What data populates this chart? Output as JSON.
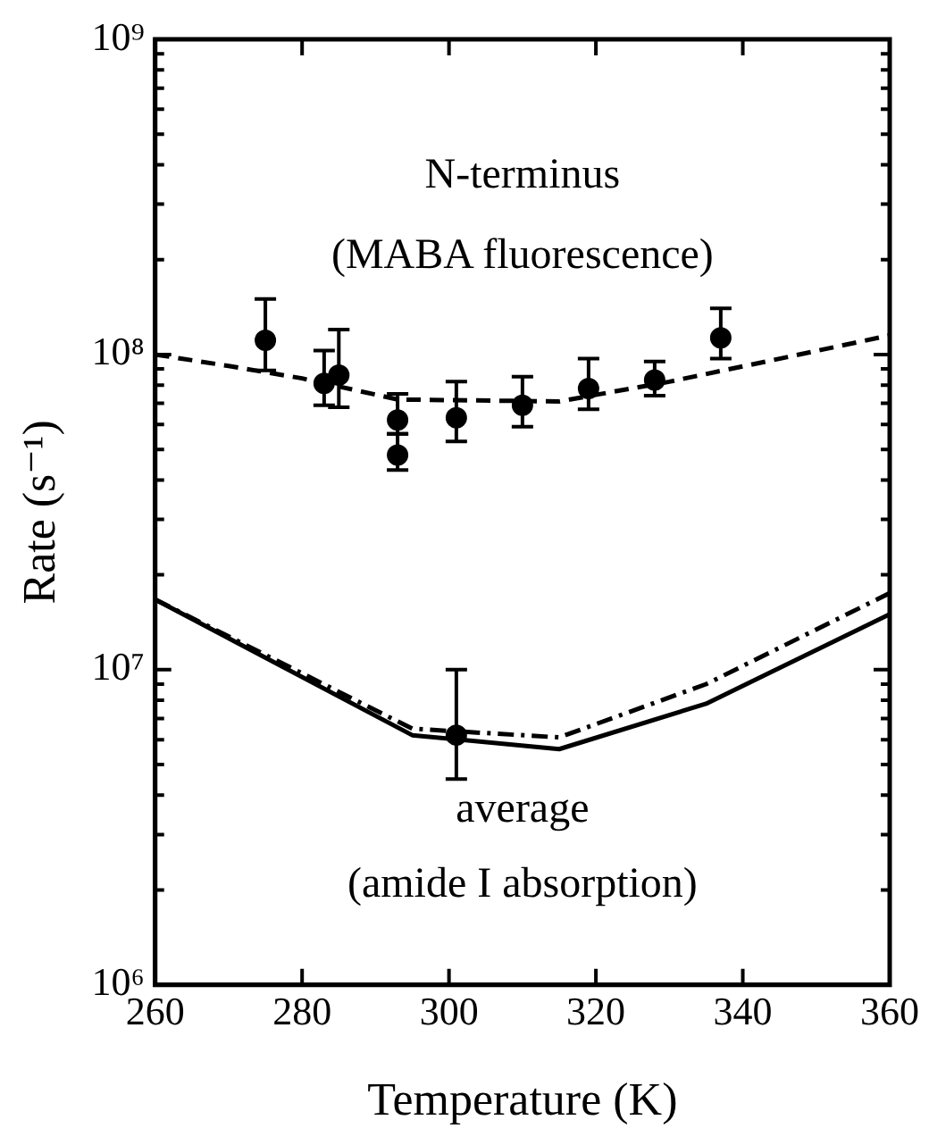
{
  "chart_data": {
    "type": "line",
    "xlabel": "Temperature (K)",
    "ylabel": "Rate (s⁻¹)",
    "annotations": [
      "N-terminus",
      "(MABA fluorescence)",
      "average",
      "(amide I absorption)"
    ],
    "xlim": [
      260,
      360
    ],
    "xticks": [
      260,
      280,
      300,
      320,
      340,
      360
    ],
    "ylim": [
      1000000,
      1000000000
    ],
    "log": true,
    "grid": false,
    "legend": false,
    "yticks": [
      {
        "value": 1000000,
        "label": "10⁶"
      },
      {
        "value": 2000000,
        "label": null
      },
      {
        "value": 3000000,
        "label": null
      },
      {
        "value": 4000000,
        "label": null
      },
      {
        "value": 5000000,
        "label": null
      },
      {
        "value": 6000000,
        "label": null
      },
      {
        "value": 7000000,
        "label": null
      },
      {
        "value": 8000000,
        "label": null
      },
      {
        "value": 9000000,
        "label": null
      },
      {
        "value": 10000000,
        "label": "10⁷"
      },
      {
        "value": 20000000,
        "label": null
      },
      {
        "value": 30000000,
        "label": null
      },
      {
        "value": 40000000,
        "label": null
      },
      {
        "value": 50000000,
        "label": null
      },
      {
        "value": 60000000,
        "label": null
      },
      {
        "value": 70000000,
        "label": null
      },
      {
        "value": 80000000,
        "label": null
      },
      {
        "value": 90000000,
        "label": null
      },
      {
        "value": 100000000,
        "label": "10⁸"
      },
      {
        "value": 200000000,
        "label": null
      },
      {
        "value": 300000000,
        "label": null
      },
      {
        "value": 400000000,
        "label": null
      },
      {
        "value": 500000000,
        "label": null
      },
      {
        "value": 600000000,
        "label": null
      },
      {
        "value": 700000000,
        "label": null
      },
      {
        "value": 800000000,
        "label": null
      },
      {
        "value": 900000000,
        "label": null
      },
      {
        "value": 1000000000,
        "label": "10⁹"
      }
    ],
    "series": [
      {
        "type": "line",
        "line_style": "dashed",
        "color": "#000000",
        "x": [
          260,
          270,
          280,
          293,
          315,
          330,
          345,
          360
        ],
        "values": [
          100000000,
          92000000,
          84000000,
          72000000,
          71000000,
          82000000,
          97000000,
          115000000
        ]
      },
      {
        "type": "line",
        "line_style": "solid",
        "color": "#000000",
        "x": [
          260,
          295,
          315,
          335,
          360
        ],
        "values": [
          16700000,
          6200000,
          5600000,
          7800000,
          15000000
        ]
      },
      {
        "type": "line",
        "line_style": "dashdot",
        "color": "#000000",
        "x": [
          260,
          295,
          315,
          335,
          360
        ],
        "values": [
          16700000,
          6500000,
          6100000,
          9000000,
          17500000
        ]
      },
      {
        "type": "scatter",
        "marker": "circle",
        "color": "#000000",
        "x": [
          275,
          283,
          285,
          293,
          293,
          301,
          310,
          319,
          328,
          337,
          301
        ],
        "values": [
          111000000,
          81000000,
          86000000,
          62000000,
          48000000,
          63000000,
          69000000,
          78000000,
          83000000,
          113000000,
          6200000
        ],
        "errors": [
          [
            89000000,
            150000000
          ],
          [
            69000000,
            103000000
          ],
          [
            68000000,
            120000000
          ],
          [
            56000000,
            75000000
          ],
          [
            43000000,
            56000000
          ],
          [
            53000000,
            82000000
          ],
          [
            59000000,
            85000000
          ],
          [
            67000000,
            97000000
          ],
          [
            74000000,
            95000000
          ],
          [
            97000000,
            140000000
          ],
          [
            4500000,
            10000000
          ]
        ]
      }
    ]
  }
}
